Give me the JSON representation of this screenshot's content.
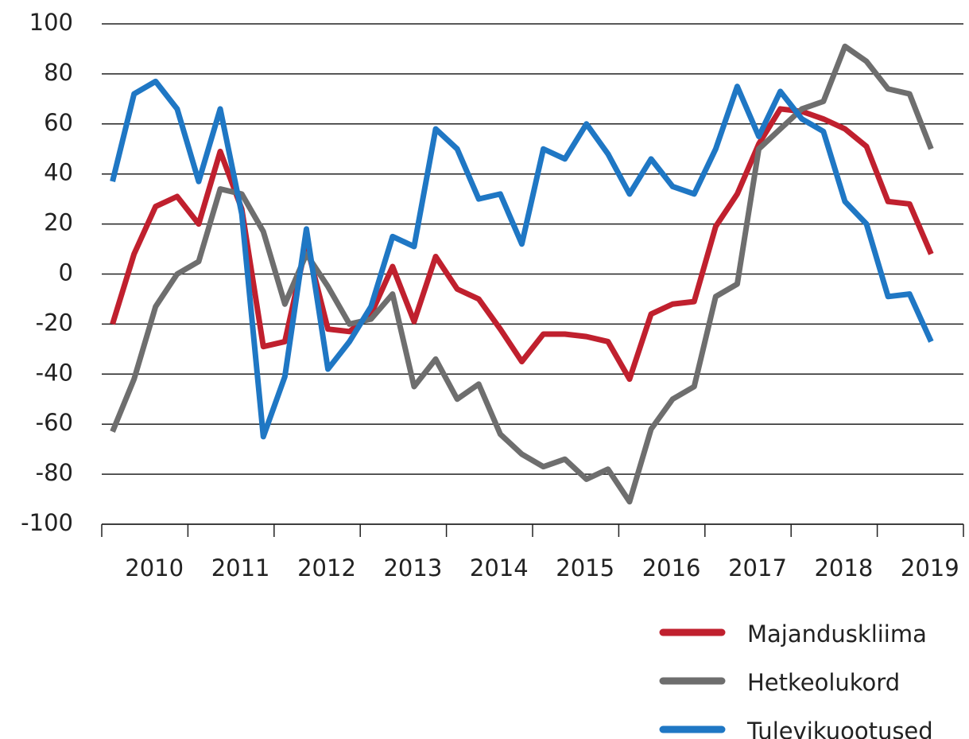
{
  "chart_data": {
    "type": "line",
    "x": [
      2010.125,
      2010.375,
      2010.625,
      2010.875,
      2011.125,
      2011.375,
      2011.625,
      2011.875,
      2012.125,
      2012.375,
      2012.625,
      2012.875,
      2013.125,
      2013.375,
      2013.625,
      2013.875,
      2014.125,
      2014.375,
      2014.625,
      2014.875,
      2015.125,
      2015.375,
      2015.625,
      2015.875,
      2016.125,
      2016.375,
      2016.625,
      2016.875,
      2017.125,
      2017.375,
      2017.625,
      2017.875,
      2018.125,
      2018.375,
      2018.625,
      2018.875,
      2019.125,
      2019.375,
      2019.625
    ],
    "series": [
      {
        "name": "Majanduskliima",
        "color": "#c0202e",
        "values": [
          -20,
          8,
          27,
          31,
          20,
          49,
          26,
          -29,
          -27,
          12,
          -22,
          -23,
          -16,
          3,
          -19,
          7,
          -6,
          -10,
          -22,
          -35,
          -24,
          -24,
          -25,
          -27,
          -42,
          -16,
          -12,
          -11,
          19,
          32,
          52,
          66,
          65,
          62,
          58,
          51,
          29,
          28,
          8
        ]
      },
      {
        "name": "Hetkeolukord",
        "color": "#6e6e6e",
        "values": [
          -63,
          -42,
          -13,
          0,
          5,
          34,
          32,
          17,
          -12,
          8,
          -5,
          -20,
          -18,
          -8,
          -45,
          -34,
          -50,
          -44,
          -64,
          -72,
          -77,
          -74,
          -82,
          -78,
          -91,
          -62,
          -50,
          -45,
          -9,
          -4,
          50,
          58,
          66,
          69,
          91,
          85,
          74,
          72,
          50
        ]
      },
      {
        "name": "Tulevikuootused",
        "color": "#1f77c4",
        "values": [
          37,
          72,
          77,
          66,
          37,
          66,
          24,
          -65,
          -41,
          18,
          -38,
          -27,
          -13,
          15,
          11,
          58,
          50,
          30,
          32,
          12,
          50,
          46,
          60,
          48,
          32,
          46,
          35,
          32,
          50,
          75,
          55,
          73,
          62,
          57,
          29,
          20,
          -9,
          -8,
          -27
        ]
      }
    ],
    "xlim": [
      2010,
      2020
    ],
    "xticks": [
      2010,
      2011,
      2012,
      2013,
      2014,
      2015,
      2016,
      2017,
      2018,
      2019,
      2020
    ],
    "xtick_labels": [
      "2010",
      "2011",
      "2012",
      "2013",
      "2014",
      "2015",
      "2016",
      "2017",
      "2018",
      "2019"
    ],
    "ylim": [
      -100,
      100
    ],
    "yticks": [
      -100,
      -80,
      -60,
      -40,
      -20,
      0,
      20,
      40,
      60,
      80,
      100
    ],
    "grid": true,
    "legend": "bottom-right"
  }
}
